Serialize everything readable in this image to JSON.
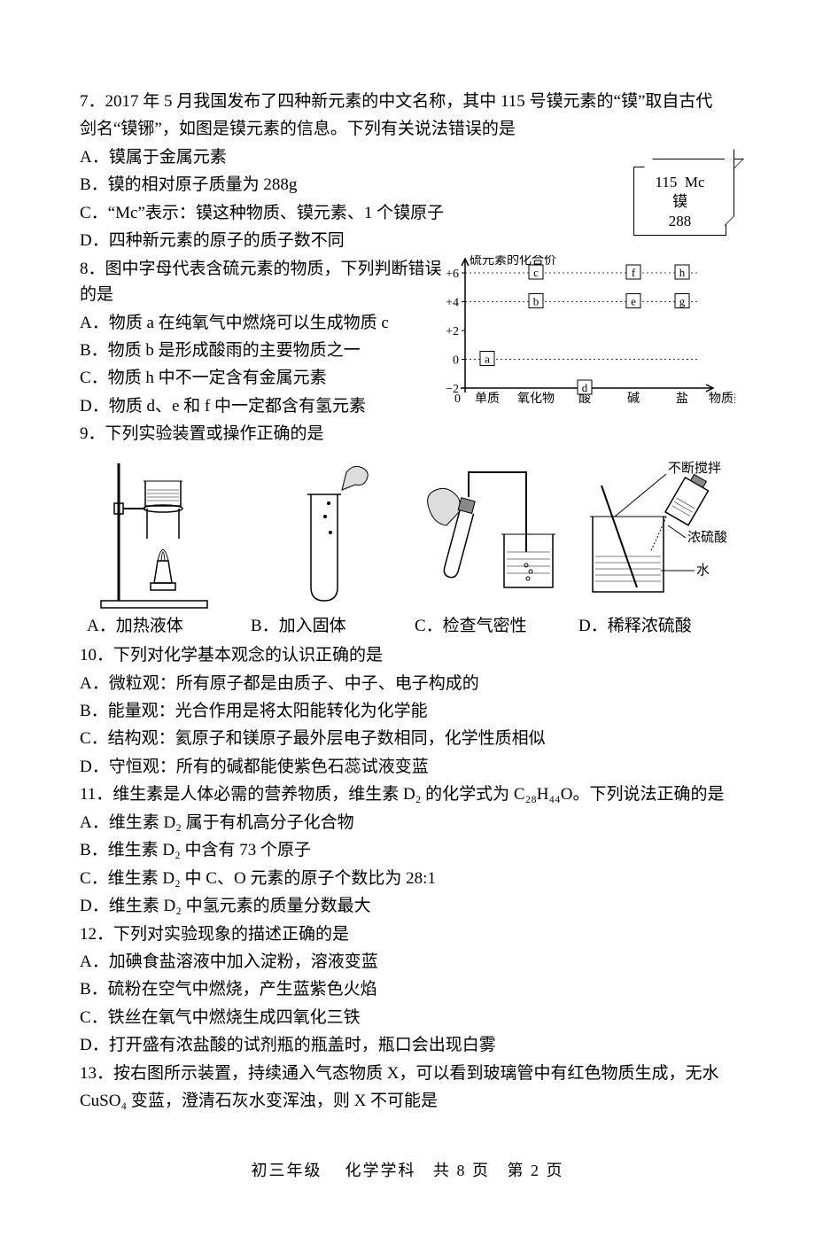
{
  "q7": {
    "stem_1": "7．2017 年 5 月我国发布了四种新元素的中文名称，其中 115 号镆元素的“镆”取自古代",
    "stem_2": "剑名“镆铘”，如图是镆元素的信息。下列有关说法错误的是",
    "A": "A．镆属于金属元素",
    "B": "B．镆的相对原子质量为 288g",
    "C": "C．“Mc”表示：镆这种物质、镆元素、1 个镆原子",
    "D": "D．四种新元素的原子的质子数不同",
    "element": {
      "num": "115",
      "sym": "Mc",
      "name": "镆",
      "mass": "288"
    }
  },
  "q8": {
    "stem": "8．图中字母代表含硫元素的物质，下列判断错误的是",
    "A": "A．物质 a 在纯氧气中燃烧可以生成物质 c",
    "B": "B．物质 b 是形成酸雨的主要物质之一",
    "C": "C．物质 h 中不一定含有金属元素",
    "D": "D．物质 d、e 和 f 中一定都含有氢元素",
    "chart": {
      "ylabel": "硫元素的化合价",
      "xlabel": "物质类别",
      "xcats": [
        "单质",
        "氧化物",
        "酸",
        "碱",
        "盐"
      ],
      "yticks": [
        "+6",
        "+4",
        "+2",
        "0",
        "−2"
      ],
      "points": [
        {
          "label": "a",
          "xi": 0,
          "yv": 0
        },
        {
          "label": "b",
          "xi": 1,
          "yv": 4
        },
        {
          "label": "c",
          "xi": 1,
          "yv": 6
        },
        {
          "label": "d",
          "xi": 2,
          "yv": -2
        },
        {
          "label": "e",
          "xi": 3,
          "yv": 4
        },
        {
          "label": "f",
          "xi": 3,
          "yv": 6
        },
        {
          "label": "g",
          "xi": 4,
          "yv": 4
        },
        {
          "label": "h",
          "xi": 4,
          "yv": 6
        }
      ],
      "axis_color": "#000000",
      "grid_dash": "2,3",
      "box_stroke": "#000000",
      "font_size": 14
    }
  },
  "q9": {
    "stem": "9．下列实验装置或操作正确的是",
    "captions": {
      "A": "A．加热液体",
      "B": "B．加入固体",
      "C": "C．检查气密性",
      "D": "D．稀释浓硫酸"
    },
    "labels_d": {
      "stir": "不断搅拌",
      "acid": "浓硫酸",
      "water": "水"
    }
  },
  "q10": {
    "stem": "10．下列对化学基本观念的认识正确的是",
    "A": "A．微粒观：所有原子都是由质子、中子、电子构成的",
    "B": "B．能量观：光合作用是将太阳能转化为化学能",
    "C": "C．结构观：氦原子和镁原子最外层电子数相同，化学性质相似",
    "D": "D．守恒观：所有的碱都能使紫色石蕊试液变蓝"
  },
  "q11": {
    "stem": "11．维生素是人体必需的营养物质，维生素 D₂ 的化学式为 C₂₈H₄₄O。下列说法正确的是",
    "A": "A．维生素 D₂ 属于有机高分子化合物",
    "B": "B．维生素 D₂ 中含有 73 个原子",
    "C": "C．维生素 D₂ 中 C、O 元素的原子个数比为 28:1",
    "D": "D．维生素 D₂ 中氢元素的质量分数最大"
  },
  "q12": {
    "stem": "12．下列对实验现象的描述正确的是",
    "A": "A．加碘食盐溶液中加入淀粉，溶液变蓝",
    "B": "B．硫粉在空气中燃烧，产生蓝紫色火焰",
    "C": "C．铁丝在氧气中燃烧生成四氧化三铁",
    "D": "D．打开盛有浓盐酸的试剂瓶的瓶盖时，瓶口会出现白雾"
  },
  "q13": {
    "stem_1": "13．按右图所示装置，持续通入气态物质 X，可以看到玻璃管中有红色物质生成，无水",
    "stem_2": "CuSO₄ 变蓝，澄清石灰水变浑浊，则 X 不可能是"
  },
  "footer": {
    "a": "初三年级",
    "b": "化学学科",
    "c": "共 8 页",
    "d": "第 2 页"
  }
}
